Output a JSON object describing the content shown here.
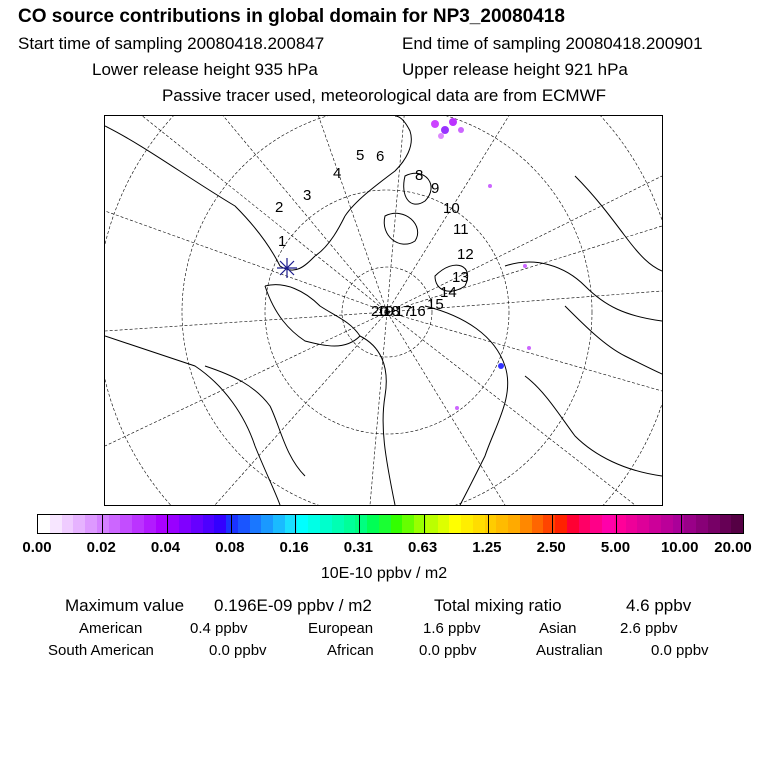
{
  "header": {
    "title": "CO  source contributions in global domain for NP3_20080418",
    "start_time": "Start time of sampling 20080418.200847",
    "end_time": "End time of sampling 20080418.200901",
    "lower_height": "Lower release height  935 hPa",
    "upper_height": "Upper release height  921 hPa",
    "tracer_note": "Passive tracer used, meteorological data are from ECMWF"
  },
  "map": {
    "projection": "north polar stereographic",
    "trajectory_labels": [
      "1",
      "2",
      "3",
      "4",
      "5",
      "6",
      "8",
      "9",
      "10",
      "11",
      "12",
      "13",
      "14",
      "15",
      "16",
      "17",
      "18",
      "19",
      "20"
    ],
    "release_marker": "release-location-star"
  },
  "colorbar": {
    "labels": [
      "0.00",
      "0.02",
      "0.04",
      "0.08",
      "0.16",
      "0.31",
      "0.63",
      "1.25",
      "2.50",
      "5.00",
      "10.00",
      "20.00"
    ],
    "colors": [
      "#ffffff",
      "#f7e6ff",
      "#efccff",
      "#e6b3ff",
      "#dd99ff",
      "#d480ff",
      "#cc66ff",
      "#c34dff",
      "#bb33ff",
      "#b21aff",
      "#aa00ff",
      "#9900ff",
      "#8000ff",
      "#6600ff",
      "#4d00ff",
      "#3300ff",
      "#1a33ff",
      "#1a55ff",
      "#1a77ff",
      "#1a99ff",
      "#1abbff",
      "#1adfff",
      "#00ffff",
      "#00ffe6",
      "#00ffcc",
      "#00ffb3",
      "#00ff99",
      "#00ff80",
      "#00ff55",
      "#1aff33",
      "#33ff00",
      "#66ff00",
      "#99ff00",
      "#bbff00",
      "#ddff00",
      "#ffff00",
      "#ffee00",
      "#ffdd00",
      "#ffcc00",
      "#ffbb00",
      "#ffaa00",
      "#ff8800",
      "#ff6600",
      "#ff4400",
      "#ff2200",
      "#ff0033",
      "#ff0066",
      "#ff0088",
      "#ff00aa",
      "#ff0099",
      "#ee0099",
      "#dd0099",
      "#cc0099",
      "#bb0099",
      "#aa0099",
      "#990088",
      "#880077",
      "#770066",
      "#660055",
      "#550044"
    ],
    "units": "10E-10 ppbv / m2"
  },
  "chart_data": {
    "type": "map",
    "title": "CO  source contributions in global domain for NP3_20080418",
    "legend_bins": [
      "0.00",
      "0.02",
      "0.04",
      "0.08",
      "0.16",
      "0.31",
      "0.63",
      "1.25",
      "2.50",
      "5.00",
      "10.00",
      "20.00"
    ],
    "units": "10E-10 ppbv / m2"
  },
  "summary": {
    "max_label": "Maximum value",
    "max_value": "0.196E-09 ppbv / m2",
    "total_label": "Total mixing ratio",
    "total_value": "4.6 ppbv",
    "regions": [
      {
        "name": "American",
        "value": "0.4 ppbv"
      },
      {
        "name": "European",
        "value": "1.6 ppbv"
      },
      {
        "name": "Asian",
        "value": "2.6 ppbv"
      },
      {
        "name": "South American",
        "value": "0.0 ppbv"
      },
      {
        "name": "African",
        "value": "0.0 ppbv"
      },
      {
        "name": "Australian",
        "value": "0.0 ppbv"
      }
    ]
  }
}
